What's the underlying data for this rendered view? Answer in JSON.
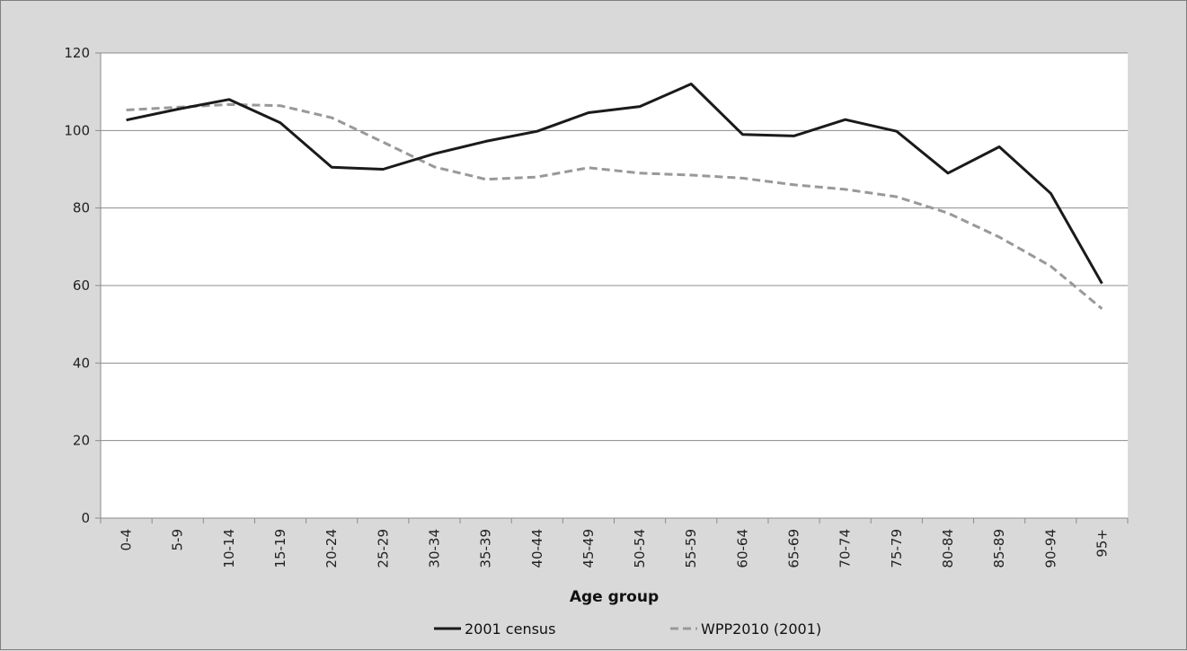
{
  "chart_data": {
    "type": "line",
    "title": "",
    "xlabel": "Age group",
    "ylabel": "",
    "categories": [
      "0-4",
      "5-9",
      "10-14",
      "15-19",
      "20-24",
      "25-29",
      "30-34",
      "35-39",
      "40-44",
      "45-49",
      "50-54",
      "55-59",
      "60-64",
      "65-69",
      "70-74",
      "75-79",
      "80-84",
      "85-89",
      "90-94",
      "95+"
    ],
    "ylim": [
      0,
      120
    ],
    "yticks": [
      0,
      20,
      40,
      60,
      80,
      100,
      120
    ],
    "grid": true,
    "legend_position": "bottom",
    "series": [
      {
        "name": "2001 census",
        "style": "solid",
        "color": "#1a1a1a",
        "values": [
          102.7,
          105.5,
          108.0,
          102.0,
          90.5,
          90.0,
          94.0,
          97.2,
          99.8,
          104.6,
          106.2,
          112.0,
          99.0,
          98.6,
          102.8,
          99.8,
          89.0,
          95.8,
          83.8,
          60.5
        ]
      },
      {
        "name": "WPP2010 (2001)",
        "style": "dashed",
        "color": "#999999",
        "values": [
          105.3,
          106.0,
          106.7,
          106.4,
          103.3,
          97.0,
          90.6,
          87.4,
          88.0,
          90.4,
          89.0,
          88.5,
          87.7,
          86.0,
          84.8,
          82.9,
          78.7,
          72.5,
          65.0,
          54.0
        ]
      }
    ]
  }
}
